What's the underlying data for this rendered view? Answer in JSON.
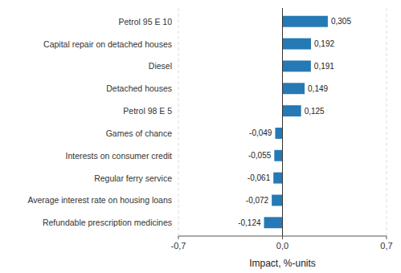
{
  "chart_data": {
    "type": "bar",
    "orientation": "horizontal",
    "categories": [
      "Refundable prescription medicines",
      "Average interest rate on housing loans",
      "Regular ferry service",
      "Interests on consumer credit",
      "Games of chance",
      "Petrol 98 E 5",
      "Detached houses",
      "Diesel",
      "Capital repair on detached houses",
      "Petrol 95 E 10"
    ],
    "values": [
      -0.124,
      -0.072,
      -0.061,
      -0.055,
      -0.049,
      0.125,
      0.149,
      0.191,
      0.192,
      0.305
    ],
    "value_labels": [
      "-0,124",
      "-0,072",
      "-0,061",
      "-0,055",
      "-0,049",
      "0,125",
      "0,149",
      "0,191",
      "0,192",
      "0,305"
    ],
    "data_labels": true,
    "color": "#2579B5",
    "xlabel": "Impact, %-units",
    "xlim": [
      -0.7,
      0.7
    ],
    "xticks": [
      {
        "value": -0.7,
        "label": "-0,7"
      },
      {
        "value": 0.0,
        "label": "0,0"
      },
      {
        "value": 0.7,
        "label": "0,7"
      }
    ],
    "grid": true
  }
}
